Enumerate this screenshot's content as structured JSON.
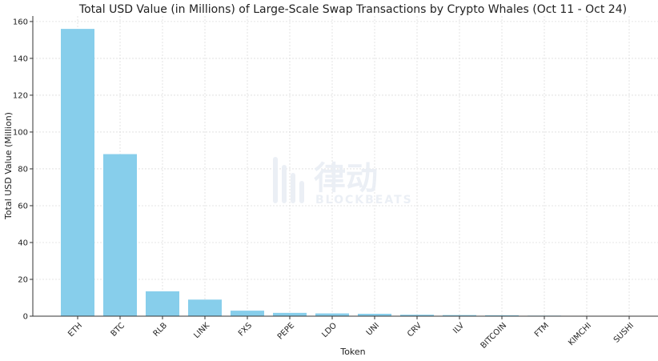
{
  "chart_data": {
    "type": "bar",
    "title": "Total USD Value (in Millions) of Large-Scale Swap Transactions by Crypto Whales (Oct 11 - Oct 24)",
    "xlabel": "Token",
    "ylabel": "Total USD Value (Million)",
    "categories": [
      "ETH",
      "BTC",
      "RLB",
      "LINK",
      "FXS",
      "PEPE",
      "LDO",
      "UNI",
      "CRV",
      "ILV",
      "BITCOIN",
      "FTM",
      "KIMCHI",
      "SUSHI"
    ],
    "values": [
      156,
      88,
      13.5,
      9,
      3,
      1.8,
      1.5,
      1.3,
      0.8,
      0.6,
      0.5,
      0.3,
      0.2,
      0.15
    ],
    "ylim": [
      0,
      163
    ],
    "yticks": [
      0,
      20,
      40,
      60,
      80,
      100,
      120,
      140,
      160
    ],
    "grid": true,
    "bar_color": "#87ceeb"
  },
  "watermark": {
    "cn": "律动",
    "en": "BLOCKBEATS"
  }
}
